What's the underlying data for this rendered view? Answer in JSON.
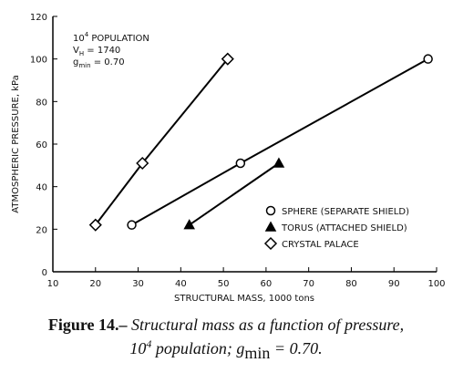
{
  "chart_data": {
    "type": "line",
    "x_label": "STRUCTURAL MASS, 1000 tons",
    "y_label": "ATMOSPHERIC PRESSURE, kPa",
    "xlim": [
      10,
      100
    ],
    "xticks": [
      10,
      20,
      30,
      40,
      50,
      60,
      70,
      80,
      90,
      100
    ],
    "ylim": [
      0,
      120
    ],
    "yticks": [
      0,
      20,
      40,
      60,
      80,
      100,
      120
    ],
    "legend": "lower right",
    "annotation": {
      "population": [
        "10",
        "4",
        " POPULATION"
      ],
      "vh": [
        "V",
        "H",
        " = 1740"
      ],
      "gmin": [
        "g",
        "min",
        " = 0.70"
      ]
    },
    "series": [
      {
        "name": "SPHERE (SEPARATE SHIELD)",
        "marker": "circle",
        "color": "#000000",
        "x": [
          28.5,
          54,
          98
        ],
        "values": [
          22,
          51,
          100
        ]
      },
      {
        "name": "TORUS (ATTACHED SHIELD)",
        "marker": "triangle",
        "color": "#000000",
        "x": [
          42,
          63
        ],
        "values": [
          22,
          51
        ]
      },
      {
        "name": "CRYSTAL PALACE",
        "marker": "diamond",
        "color": "#000000",
        "x": [
          20,
          31,
          51
        ],
        "values": [
          22,
          51,
          100
        ]
      }
    ]
  },
  "caption": {
    "label": "Figure 14.–",
    "line1": " Structural mass as a function of pressure,",
    "line2": [
      "10",
      "4",
      " population; g",
      "min",
      " = 0.70."
    ]
  }
}
